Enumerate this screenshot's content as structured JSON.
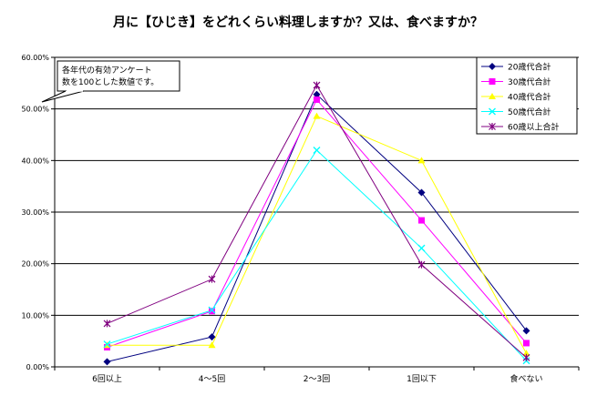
{
  "chart_data": {
    "type": "line",
    "title": "月に【ひじき】をどれくらい料理しますか？又は、食べますか？",
    "categories": [
      "6回以上",
      "4～5回",
      "2～3回",
      "1回以下",
      "食べない"
    ],
    "ylim": [
      0,
      60
    ],
    "yticks": [
      0,
      10,
      20,
      30,
      40,
      50,
      60
    ],
    "ytick_labels": [
      "0.00%",
      "10.00%",
      "20.00%",
      "30.00%",
      "40.00%",
      "50.00%",
      "60.00%"
    ],
    "grid": true,
    "legend_position": "top-right",
    "annotation": [
      "各年代の有効アンケート",
      "数を100とした数値です。"
    ],
    "series": [
      {
        "name": "20歳代合計",
        "color": "#000080",
        "marker": "diamond",
        "values": [
          1.0,
          5.8,
          52.8,
          33.8,
          7.0
        ]
      },
      {
        "name": "30歳代合計",
        "color": "#ff00ff",
        "marker": "square",
        "values": [
          3.8,
          10.8,
          51.8,
          28.4,
          4.6
        ]
      },
      {
        "name": "40歳代合計",
        "color": "#ffff00",
        "marker": "triangle",
        "values": [
          4.2,
          4.2,
          48.6,
          40.0,
          2.6
        ]
      },
      {
        "name": "50歳代合計",
        "color": "#00ffff",
        "marker": "x",
        "values": [
          4.4,
          11.0,
          42.0,
          23.0,
          1.2
        ]
      },
      {
        "name": "60歳以上合計",
        "color": "#800080",
        "marker": "star",
        "values": [
          8.4,
          17.0,
          54.6,
          19.8,
          1.8
        ]
      }
    ]
  }
}
